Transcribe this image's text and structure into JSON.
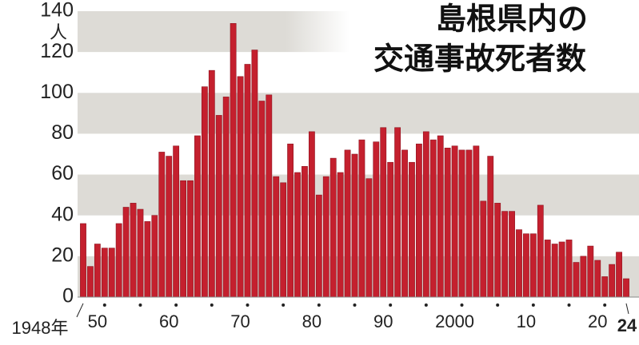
{
  "chart_data": {
    "type": "bar",
    "title": [
      "島根県内の",
      "交通事故死者数"
    ],
    "y_unit": "人",
    "categories": [
      "1948年",
      null,
      "50",
      null,
      null,
      null,
      null,
      null,
      null,
      null,
      null,
      null,
      "60",
      null,
      null,
      null,
      null,
      null,
      null,
      null,
      null,
      null,
      "70",
      null,
      null,
      null,
      null,
      null,
      null,
      null,
      null,
      null,
      "80",
      null,
      null,
      null,
      null,
      null,
      null,
      null,
      null,
      null,
      "90",
      null,
      null,
      null,
      null,
      null,
      null,
      null,
      null,
      null,
      "2000",
      null,
      null,
      null,
      null,
      null,
      null,
      null,
      null,
      null,
      "10",
      null,
      null,
      null,
      null,
      null,
      null,
      null,
      null,
      null,
      "20",
      null,
      null,
      null,
      "24"
    ],
    "values": [
      36,
      15,
      26,
      24,
      24,
      36,
      44,
      46,
      43,
      37,
      40,
      71,
      69,
      74,
      57,
      57,
      79,
      103,
      111,
      89,
      98,
      134,
      108,
      114,
      121,
      96,
      99,
      59,
      56,
      75,
      61,
      64,
      81,
      50,
      59,
      68,
      61,
      72,
      70,
      77,
      58,
      76,
      83,
      66,
      83,
      72,
      66,
      75,
      81,
      77,
      79,
      73,
      74,
      72,
      72,
      74,
      47,
      69,
      46,
      42,
      42,
      33,
      31,
      31,
      45,
      28,
      26,
      27,
      28,
      17,
      20,
      25,
      18,
      10,
      16,
      22,
      9
    ],
    "color": "#c4202e",
    "ylim": [
      0,
      140
    ],
    "yticks": [
      0,
      20,
      40,
      60,
      80,
      100,
      120,
      140
    ],
    "grid": "bands"
  }
}
